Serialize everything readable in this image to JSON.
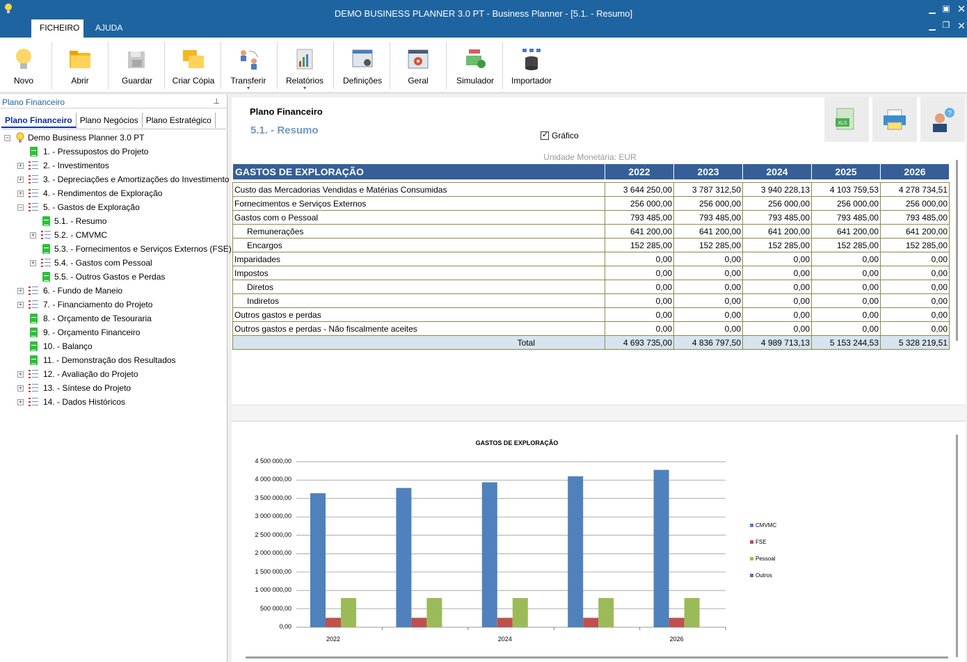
{
  "window": {
    "title": "DEMO BUSINESS PLANNER 3.0 PT - Business Planner - [5.1. - Resumo]",
    "menu_tabs": [
      "FICHEIRO",
      "AJUDA"
    ]
  },
  "ribbon": {
    "buttons": [
      {
        "label": "Novo",
        "icon": "lightbulb-icon"
      },
      {
        "label": "Abrir",
        "icon": "folder-icon"
      },
      {
        "label": "Guardar",
        "icon": "save-icon"
      },
      {
        "label": "Criar Cópia",
        "icon": "copy-folder-icon"
      },
      {
        "label": "Transferir",
        "icon": "transfer-users-icon"
      },
      {
        "label": "Relatórios",
        "icon": "reports-icon"
      },
      {
        "label": "Definições",
        "icon": "settings-form-icon"
      },
      {
        "label": "Geral",
        "icon": "general-gear-icon"
      },
      {
        "label": "Simulador",
        "icon": "simulator-money-icon"
      },
      {
        "label": "Importador",
        "icon": "importer-database-icon"
      }
    ]
  },
  "left_panel": {
    "header": "Plano Financeiro",
    "pin": "⊥",
    "tabs": [
      "Plano Financeiro",
      "Plano Negócios",
      "Plano Estratégico"
    ],
    "tree": [
      {
        "label": "Demo Business Planner 3.0 PT",
        "level": 0,
        "icon": "root",
        "exp": "−"
      },
      {
        "label": "1. - Pressupostos do Projeto",
        "level": 1,
        "icon": "doc",
        "exp": ""
      },
      {
        "label": "2. - Investimentos",
        "level": 1,
        "icon": "list",
        "exp": "+"
      },
      {
        "label": "3. - Depreciações e Amortizações do Investimento",
        "level": 1,
        "icon": "list",
        "exp": "+"
      },
      {
        "label": "4. - Rendimentos de Exploração",
        "level": 1,
        "icon": "list",
        "exp": "+"
      },
      {
        "label": "5. - Gastos de Exploração",
        "level": 1,
        "icon": "list",
        "exp": "−"
      },
      {
        "label": "5.1. - Resumo",
        "level": 2,
        "icon": "doc",
        "exp": ""
      },
      {
        "label": "5.2. - CMVMC",
        "level": 2,
        "icon": "list",
        "exp": "+"
      },
      {
        "label": "5.3. - Fornecimentos e Serviços Externos (FSE)",
        "level": 2,
        "icon": "doc",
        "exp": ""
      },
      {
        "label": "5.4. - Gastos com Pessoal",
        "level": 2,
        "icon": "list",
        "exp": "+"
      },
      {
        "label": "5.5. - Outros Gastos e Perdas",
        "level": 2,
        "icon": "doc",
        "exp": ""
      },
      {
        "label": "6. - Fundo de Maneio",
        "level": 1,
        "icon": "list",
        "exp": "+"
      },
      {
        "label": "7. - Financiamento do Projeto",
        "level": 1,
        "icon": "list",
        "exp": "+"
      },
      {
        "label": "8. - Orçamento de Tesouraria",
        "level": 1,
        "icon": "doc",
        "exp": ""
      },
      {
        "label": "9. - Orçamento Financeiro",
        "level": 1,
        "icon": "doc",
        "exp": ""
      },
      {
        "label": "10. - Balanço",
        "level": 1,
        "icon": "doc",
        "exp": ""
      },
      {
        "label": "11. - Demonstração dos Resultados",
        "level": 1,
        "icon": "doc",
        "exp": ""
      },
      {
        "label": "12. - Avaliação do Projeto",
        "level": 1,
        "icon": "list",
        "exp": "+"
      },
      {
        "label": "13. - Síntese do Projeto",
        "level": 1,
        "icon": "list",
        "exp": "+"
      },
      {
        "label": "14. - Dados Históricos",
        "level": 1,
        "icon": "list",
        "exp": "+"
      }
    ]
  },
  "main": {
    "title": "Plano Financeiro",
    "subtitle": "5.1. - Resumo",
    "chart_checkbox_label": "Gráfico",
    "toolbar": {
      "xls_label": "XLS"
    },
    "unit_label": "Unidade Monetária: EUR",
    "table": {
      "header": "GASTOS DE EXPLORAÇÃO",
      "years": [
        "2022",
        "2023",
        "2024",
        "2025",
        "2026"
      ],
      "rows": [
        {
          "label": "Custo das Mercadorias Vendidas  e Matérias Consumidas",
          "indent": false,
          "values": [
            "3 644 250,00",
            "3 787 312,50",
            "3 940 228,13",
            "4 103 759,53",
            "4 278 734,51"
          ]
        },
        {
          "label": "Fornecimentos e Serviços Externos",
          "indent": false,
          "values": [
            "256 000,00",
            "256 000,00",
            "256 000,00",
            "256 000,00",
            "256 000,00"
          ]
        },
        {
          "label": "Gastos com o Pessoal",
          "indent": false,
          "values": [
            "793 485,00",
            "793 485,00",
            "793 485,00",
            "793 485,00",
            "793 485,00"
          ]
        },
        {
          "label": "Remunerações",
          "indent": true,
          "values": [
            "641 200,00",
            "641 200,00",
            "641 200,00",
            "641 200,00",
            "641 200,00"
          ]
        },
        {
          "label": "Encargos",
          "indent": true,
          "values": [
            "152 285,00",
            "152 285,00",
            "152 285,00",
            "152 285,00",
            "152 285,00"
          ]
        },
        {
          "label": "Imparidades",
          "indent": false,
          "values": [
            "0,00",
            "0,00",
            "0,00",
            "0,00",
            "0,00"
          ]
        },
        {
          "label": "Impostos",
          "indent": false,
          "values": [
            "0,00",
            "0,00",
            "0,00",
            "0,00",
            "0,00"
          ]
        },
        {
          "label": "Diretos",
          "indent": true,
          "values": [
            "0,00",
            "0,00",
            "0,00",
            "0,00",
            "0,00"
          ]
        },
        {
          "label": "Indiretos",
          "indent": true,
          "values": [
            "0,00",
            "0,00",
            "0,00",
            "0,00",
            "0,00"
          ]
        },
        {
          "label": "Outros gastos e perdas",
          "indent": false,
          "values": [
            "0,00",
            "0,00",
            "0,00",
            "0,00",
            "0,00"
          ]
        },
        {
          "label": "Outros gastos e perdas - Não fiscalmente aceites",
          "indent": false,
          "values": [
            "0,00",
            "0,00",
            "0,00",
            "0,00",
            "0,00"
          ]
        }
      ],
      "total": {
        "label": "Total",
        "values": [
          "4 693 735,00",
          "4 836 797,50",
          "4 989 713,13",
          "5 153 244,53",
          "5 328 219,51"
        ]
      }
    }
  },
  "chart_data": {
    "type": "bar",
    "title": "GASTOS DE EXPLORAÇÃO",
    "categories": [
      "2022",
      "2023",
      "2024",
      "2025",
      "2026"
    ],
    "x_tick_labels": [
      "2022",
      "",
      "2024",
      "",
      "2026"
    ],
    "series": [
      {
        "name": "CMVMC",
        "color": "#4f81bd",
        "values": [
          3644250.0,
          3787312.5,
          3940228.13,
          4103759.53,
          4278734.51
        ]
      },
      {
        "name": "FSE",
        "color": "#c0504d",
        "values": [
          256000,
          256000,
          256000,
          256000,
          256000
        ]
      },
      {
        "name": "Pessoal",
        "color": "#9bbb59",
        "values": [
          793485,
          793485,
          793485,
          793485,
          793485
        ]
      },
      {
        "name": "Outros",
        "color": "#5a6fb5",
        "values": [
          0,
          0,
          0,
          0,
          0
        ]
      }
    ],
    "ylim": [
      0,
      4500000
    ],
    "yticks": [
      "4 500 000,00",
      "4 000 000,00",
      "3 500 000,00",
      "3 000 000,00",
      "2 500 000,00",
      "2 000 000,00",
      "1 500 000,00",
      "1 000 000,00",
      "500 000,00",
      "0,00"
    ],
    "grid": true,
    "legend": "right"
  }
}
